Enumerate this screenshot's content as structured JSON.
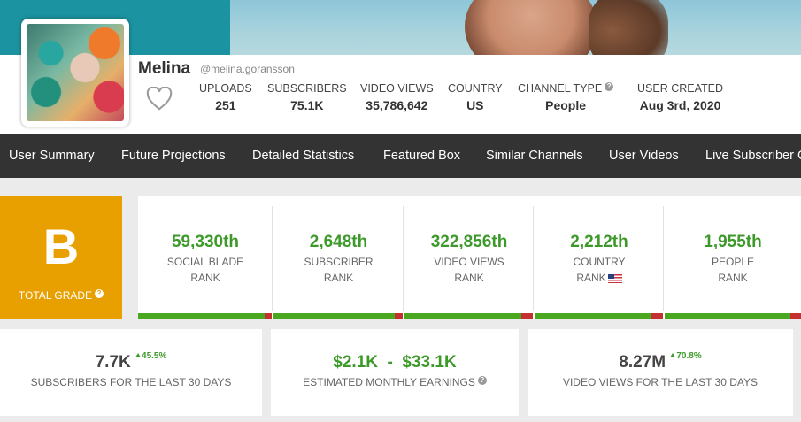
{
  "profile": {
    "name": "Melina",
    "handle": "@melina.goransson"
  },
  "stats": [
    {
      "label": "UPLOADS",
      "value": "251",
      "link": false
    },
    {
      "label": "SUBSCRIBERS",
      "value": "75.1K",
      "link": false
    },
    {
      "label": "VIDEO VIEWS",
      "value": "35,786,642",
      "link": false
    },
    {
      "label": "COUNTRY",
      "value": "US",
      "link": true
    },
    {
      "label": "CHANNEL TYPE",
      "value": "People",
      "link": true
    },
    {
      "label": "USER CREATED",
      "value": "Aug 3rd, 2020",
      "link": false
    }
  ],
  "nav": [
    "User Summary",
    "Future Projections",
    "Detailed Statistics",
    "Featured Box",
    "Similar Channels",
    "User Videos",
    "Live Subscriber Count"
  ],
  "grade": {
    "letter": "B",
    "label": "TOTAL GRADE"
  },
  "ranks": [
    {
      "value": "59,330th",
      "line1": "SOCIAL BLADE",
      "line2": "RANK",
      "fill": 0.95
    },
    {
      "value": "2,648th",
      "line1": "SUBSCRIBER",
      "line2": "RANK",
      "fill": 0.94
    },
    {
      "value": "322,856th",
      "line1": "VIDEO VIEWS",
      "line2": "RANK",
      "fill": 0.91
    },
    {
      "value": "2,212th",
      "line1": "COUNTRY",
      "line2": "RANK",
      "fill": 0.91
    },
    {
      "value": "1,955th",
      "line1": "PEOPLE",
      "line2": "RANK",
      "fill": 0.92
    }
  ],
  "cards": [
    {
      "value": "7.7K",
      "delta": "45.5%",
      "label": "SUBSCRIBERS FOR THE LAST 30 DAYS"
    },
    {
      "value": "$2.1K  -  $33.1K",
      "delta": "",
      "label": "ESTIMATED MONTHLY EARNINGS"
    },
    {
      "value": "8.27M",
      "delta": "70.8%",
      "label": "VIDEO VIEWS FOR THE LAST 30 DAYS"
    }
  ],
  "colors": {
    "nav_bg": "#333333",
    "grade_bg": "#e8a000",
    "rank_green": "#3d9a2a",
    "bar_red": "#c53030"
  },
  "icons": {
    "favorite": "heart-outline-icon",
    "help": "question-mark-icon",
    "flag": "us-flag-icon",
    "trend": "triangle-up-icon"
  }
}
